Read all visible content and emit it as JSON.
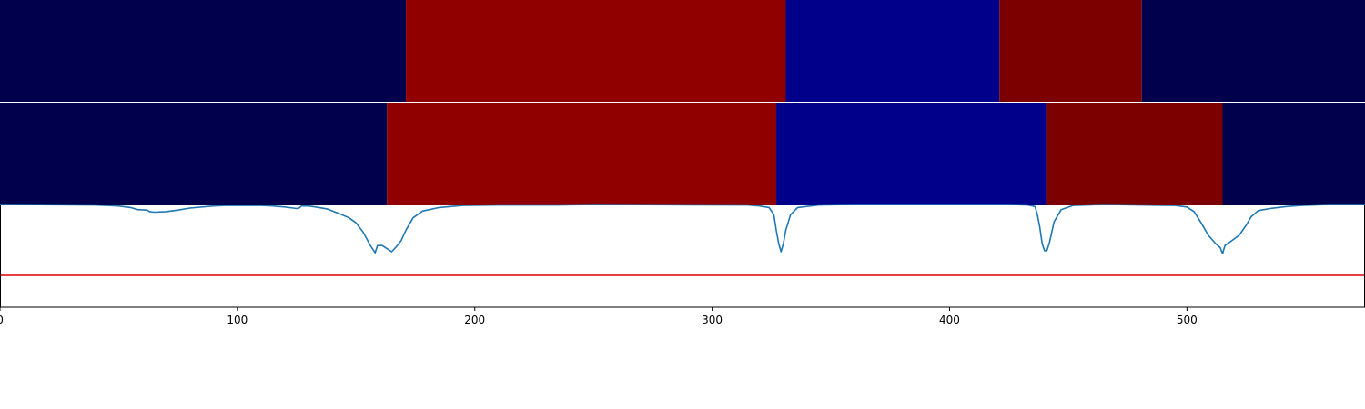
{
  "chart_data": [
    {
      "type": "heatmap",
      "title": "",
      "xlabel": "",
      "ylabel": "",
      "xlim": [
        0,
        575
      ],
      "segments": [
        {
          "start": 0,
          "end": 171,
          "color": "#00004c"
        },
        {
          "start": 171,
          "end": 331,
          "color": "#900000"
        },
        {
          "start": 331,
          "end": 421,
          "color": "#00008a"
        },
        {
          "start": 421,
          "end": 481,
          "color": "#7c0000"
        },
        {
          "start": 481,
          "end": 575,
          "color": "#00004c"
        }
      ]
    },
    {
      "type": "heatmap",
      "title": "",
      "xlabel": "",
      "ylabel": "",
      "xlim": [
        0,
        575
      ],
      "segments": [
        {
          "start": 0,
          "end": 163,
          "color": "#00004c"
        },
        {
          "start": 163,
          "end": 327,
          "color": "#900000"
        },
        {
          "start": 327,
          "end": 441,
          "color": "#00008a"
        },
        {
          "start": 441,
          "end": 515,
          "color": "#7c0000"
        },
        {
          "start": 515,
          "end": 575,
          "color": "#00004c"
        }
      ]
    },
    {
      "type": "line",
      "title": "",
      "xlabel": "",
      "ylabel": "",
      "xlim": [
        0,
        575
      ],
      "ylim": [
        0,
        1
      ],
      "x_ticks": [
        0,
        100,
        200,
        300,
        400,
        500
      ],
      "x_tick_labels": [
        "0",
        "100",
        "200",
        "300",
        "400",
        "500"
      ],
      "grid": false,
      "threshold": {
        "y": 0.31,
        "color": "#e00000"
      },
      "series": [
        {
          "color": "#1f77b4",
          "points": [
            [
              0,
              1.0
            ],
            [
              40,
              0.995
            ],
            [
              45,
              0.99
            ],
            [
              50,
              0.985
            ],
            [
              55,
              0.97
            ],
            [
              58,
              0.95
            ],
            [
              62,
              0.945
            ],
            [
              63,
              0.93
            ],
            [
              65,
              0.925
            ],
            [
              70,
              0.93
            ],
            [
              75,
              0.945
            ],
            [
              80,
              0.965
            ],
            [
              90,
              0.985
            ],
            [
              95,
              0.99
            ],
            [
              110,
              0.99
            ],
            [
              115,
              0.985
            ],
            [
              120,
              0.975
            ],
            [
              125,
              0.96
            ],
            [
              126,
              0.965
            ],
            [
              127,
              0.985
            ],
            [
              130,
              0.985
            ],
            [
              133,
              0.975
            ],
            [
              138,
              0.955
            ],
            [
              143,
              0.91
            ],
            [
              147,
              0.87
            ],
            [
              150,
              0.82
            ],
            [
              153,
              0.73
            ],
            [
              156,
              0.6
            ],
            [
              158,
              0.53
            ],
            [
              159,
              0.6
            ],
            [
              161,
              0.6
            ],
            [
              163,
              0.57
            ],
            [
              165,
              0.54
            ],
            [
              167,
              0.59
            ],
            [
              169,
              0.65
            ],
            [
              171,
              0.75
            ],
            [
              174,
              0.87
            ],
            [
              178,
              0.935
            ],
            [
              185,
              0.97
            ],
            [
              195,
              0.99
            ],
            [
              210,
              0.995
            ],
            [
              235,
              0.995
            ],
            [
              250,
              1.0
            ],
            [
              315,
              0.995
            ],
            [
              320,
              0.985
            ],
            [
              324,
              0.97
            ],
            [
              326,
              0.9
            ],
            [
              327,
              0.75
            ],
            [
              328,
              0.62
            ],
            [
              329,
              0.54
            ],
            [
              330,
              0.62
            ],
            [
              331,
              0.75
            ],
            [
              333,
              0.9
            ],
            [
              336,
              0.97
            ],
            [
              345,
              0.995
            ],
            [
              360,
              1.0
            ],
            [
              425,
              1.0
            ],
            [
              433,
              0.995
            ],
            [
              436,
              0.98
            ],
            [
              437,
              0.9
            ],
            [
              438,
              0.78
            ],
            [
              439,
              0.62
            ],
            [
              440,
              0.55
            ],
            [
              441,
              0.55
            ],
            [
              442,
              0.62
            ],
            [
              444,
              0.83
            ],
            [
              447,
              0.95
            ],
            [
              452,
              0.99
            ],
            [
              465,
              1.0
            ],
            [
              495,
              0.99
            ],
            [
              500,
              0.975
            ],
            [
              503,
              0.93
            ],
            [
              506,
              0.82
            ],
            [
              509,
              0.7
            ],
            [
              512,
              0.62
            ],
            [
              514,
              0.58
            ],
            [
              515,
              0.52
            ],
            [
              516,
              0.6
            ],
            [
              519,
              0.65
            ],
            [
              522,
              0.7
            ],
            [
              525,
              0.8
            ],
            [
              527,
              0.88
            ],
            [
              530,
              0.94
            ],
            [
              535,
              0.96
            ],
            [
              542,
              0.98
            ],
            [
              548,
              0.99
            ],
            [
              560,
              1.0
            ],
            [
              575,
              1.0
            ]
          ]
        }
      ]
    }
  ]
}
